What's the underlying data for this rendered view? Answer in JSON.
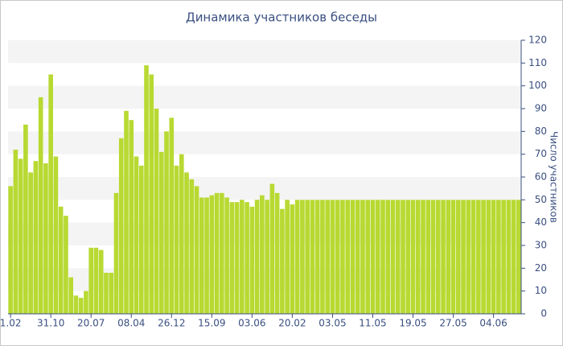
{
  "chart_data": {
    "type": "bar",
    "title": "Динамика участников беседы",
    "y_label": "Число участников",
    "categories": [
      "1.02",
      null,
      null,
      null,
      null,
      null,
      null,
      null,
      "31.10",
      null,
      null,
      null,
      null,
      null,
      null,
      null,
      "20.07",
      null,
      null,
      null,
      null,
      null,
      null,
      null,
      "08.04",
      null,
      null,
      null,
      null,
      null,
      null,
      null,
      "26.12",
      null,
      null,
      null,
      null,
      null,
      null,
      null,
      "15.09",
      null,
      null,
      null,
      null,
      null,
      null,
      null,
      "03.06",
      null,
      null,
      null,
      null,
      null,
      null,
      null,
      "20.02",
      null,
      null,
      null,
      null,
      null,
      null,
      null,
      "03.05",
      null,
      null,
      null,
      null,
      null,
      null,
      null,
      "11.05",
      null,
      null,
      null,
      null,
      null,
      null,
      null,
      "19.05",
      null,
      null,
      null,
      null,
      null,
      null,
      null,
      "27.05",
      null,
      null,
      null,
      null,
      null,
      null,
      null,
      "04.06",
      null,
      null,
      null,
      null,
      null
    ],
    "values": [
      56,
      72,
      68,
      83,
      62,
      67,
      95,
      66,
      105,
      69,
      47,
      43,
      16,
      8,
      7,
      10,
      29,
      29,
      28,
      18,
      18,
      53,
      77,
      89,
      85,
      69,
      65,
      109,
      105,
      90,
      71,
      80,
      86,
      65,
      70,
      62,
      59,
      56,
      51,
      51,
      52,
      53,
      53,
      51,
      49,
      49,
      50,
      49,
      47,
      50,
      52,
      50,
      57,
      53,
      46,
      50,
      48,
      50,
      50,
      50,
      50,
      50,
      50,
      50,
      50,
      50,
      50,
      50,
      50,
      50,
      50,
      50,
      50,
      50,
      50,
      50,
      50,
      50,
      50,
      50,
      50,
      50,
      50,
      50,
      50,
      50,
      50,
      50,
      50,
      50,
      50,
      50,
      50,
      50,
      50,
      50,
      50,
      50,
      50,
      50,
      50,
      50
    ],
    "color": "#b8d932",
    "ylim": [
      0,
      120
    ],
    "yticks": [
      0,
      10,
      20,
      30,
      40,
      50,
      60,
      70,
      80,
      90,
      100,
      110,
      120
    ],
    "grid": true,
    "y_axis_side": "right"
  }
}
